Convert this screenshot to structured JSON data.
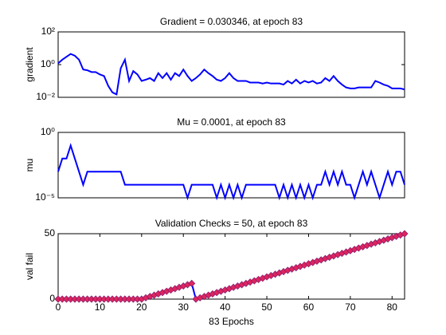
{
  "chart_data": [
    {
      "type": "line",
      "title": "Gradient = 0.030346, at epoch 83",
      "ylabel": "gradient",
      "log_y": true,
      "color": "#0000ff",
      "xlim": [
        0,
        83
      ],
      "ylim": [
        0.01,
        100
      ],
      "yticks": [
        {
          "value": 0.01,
          "label": "10⁻²"
        },
        {
          "value": 1,
          "label": "10⁰"
        },
        {
          "value": 100,
          "label": "10²"
        }
      ],
      "x": [
        0,
        1,
        2,
        3,
        4,
        5,
        6,
        7,
        8,
        9,
        10,
        11,
        12,
        13,
        14,
        15,
        16,
        17,
        18,
        19,
        20,
        21,
        22,
        23,
        24,
        25,
        26,
        27,
        28,
        29,
        30,
        31,
        32,
        33,
        34,
        35,
        36,
        37,
        38,
        39,
        40,
        41,
        42,
        43,
        44,
        45,
        46,
        47,
        48,
        49,
        50,
        51,
        52,
        53,
        54,
        55,
        56,
        57,
        58,
        59,
        60,
        61,
        62,
        63,
        64,
        65,
        66,
        67,
        68,
        69,
        70,
        71,
        72,
        73,
        74,
        75,
        76,
        77,
        78,
        79,
        80,
        81,
        82,
        83
      ],
      "values": [
        1.2,
        2,
        3,
        4.5,
        3.5,
        2,
        0.5,
        0.45,
        0.35,
        0.35,
        0.25,
        0.2,
        0.05,
        0.02,
        0.015,
        0.6,
        2,
        0.1,
        0.4,
        0.25,
        0.1,
        0.12,
        0.15,
        0.1,
        0.3,
        0.15,
        0.3,
        0.12,
        0.3,
        0.2,
        0.5,
        0.2,
        0.1,
        0.15,
        0.25,
        0.5,
        0.3,
        0.2,
        0.12,
        0.1,
        0.15,
        0.3,
        0.15,
        0.1,
        0.1,
        0.1,
        0.08,
        0.08,
        0.08,
        0.07,
        0.08,
        0.07,
        0.07,
        0.07,
        0.06,
        0.1,
        0.07,
        0.12,
        0.07,
        0.1,
        0.08,
        0.1,
        0.07,
        0.08,
        0.15,
        0.1,
        0.2,
        0.1,
        0.06,
        0.04,
        0.035,
        0.035,
        0.04,
        0.04,
        0.04,
        0.04,
        0.1,
        0.08,
        0.06,
        0.05,
        0.035,
        0.035,
        0.035,
        0.030346
      ]
    },
    {
      "type": "line",
      "title": "Mu = 0.0001, at epoch 83",
      "ylabel": "mu",
      "log_y": true,
      "color": "#0000ff",
      "xlim": [
        0,
        83
      ],
      "ylim": [
        1e-05,
        1
      ],
      "yticks": [
        {
          "value": 1e-05,
          "label": "10⁻⁵"
        },
        {
          "value": 1,
          "label": "10⁰"
        }
      ],
      "x": [
        0,
        1,
        2,
        3,
        4,
        5,
        6,
        7,
        8,
        9,
        10,
        11,
        12,
        13,
        14,
        15,
        16,
        17,
        18,
        19,
        20,
        21,
        22,
        23,
        24,
        25,
        26,
        27,
        28,
        29,
        30,
        31,
        32,
        33,
        34,
        35,
        36,
        37,
        38,
        39,
        40,
        41,
        42,
        43,
        44,
        45,
        46,
        47,
        48,
        49,
        50,
        51,
        52,
        53,
        54,
        55,
        56,
        57,
        58,
        59,
        60,
        61,
        62,
        63,
        64,
        65,
        66,
        67,
        68,
        69,
        70,
        71,
        72,
        73,
        74,
        75,
        76,
        77,
        78,
        79,
        80,
        81,
        82,
        83
      ],
      "values": [
        0.001,
        0.01,
        0.01,
        0.1,
        0.01,
        0.001,
        0.0001,
        0.001,
        0.001,
        0.001,
        0.001,
        0.001,
        0.001,
        0.001,
        0.001,
        0.001,
        0.0001,
        0.0001,
        0.0001,
        0.0001,
        0.0001,
        0.0001,
        0.0001,
        0.0001,
        0.0001,
        0.0001,
        0.0001,
        0.0001,
        0.0001,
        0.0001,
        0.0001,
        1e-05,
        0.0001,
        0.0001,
        0.0001,
        0.0001,
        0.0001,
        0.0001,
        1e-05,
        0.0001,
        1e-05,
        0.0001,
        1e-05,
        0.0001,
        1e-05,
        0.0001,
        0.0001,
        0.0001,
        0.0001,
        0.0001,
        0.0001,
        0.0001,
        0.0001,
        1e-05,
        0.0001,
        1e-05,
        0.0001,
        1e-05,
        0.0001,
        1e-05,
        0.0001,
        1e-05,
        0.0001,
        0.0001,
        0.001,
        0.0001,
        0.001,
        0.0001,
        0.001,
        0.0001,
        0.0001,
        1e-05,
        0.0001,
        0.001,
        0.0001,
        0.001,
        0.0001,
        1e-05,
        0.0001,
        0.001,
        0.0001,
        0.001,
        0.001,
        0.0001
      ]
    },
    {
      "type": "line",
      "title": "Validation Checks = 50, at epoch 83",
      "ylabel": "val fail",
      "xlabel": "83 Epochs",
      "color": "#0000ff",
      "marker": "diamond",
      "marker_color": "#e0245e",
      "marker_edge": "#8a1f6e",
      "xlim": [
        0,
        83
      ],
      "ylim": [
        0,
        50
      ],
      "yticks": [
        0,
        50
      ],
      "xticks": [
        0,
        10,
        20,
        30,
        40,
        50,
        60,
        70,
        80
      ],
      "x": [
        0,
        1,
        2,
        3,
        4,
        5,
        6,
        7,
        8,
        9,
        10,
        11,
        12,
        13,
        14,
        15,
        16,
        17,
        18,
        19,
        20,
        21,
        22,
        23,
        24,
        25,
        26,
        27,
        28,
        29,
        30,
        31,
        32,
        33,
        34,
        35,
        36,
        37,
        38,
        39,
        40,
        41,
        42,
        43,
        44,
        45,
        46,
        47,
        48,
        49,
        50,
        51,
        52,
        53,
        54,
        55,
        56,
        57,
        58,
        59,
        60,
        61,
        62,
        63,
        64,
        65,
        66,
        67,
        68,
        69,
        70,
        71,
        72,
        73,
        74,
        75,
        76,
        77,
        78,
        79,
        80,
        81,
        82,
        83
      ],
      "values": [
        0,
        0,
        0,
        0,
        0,
        0,
        0,
        0,
        0,
        0,
        0,
        0,
        0,
        0,
        0,
        0,
        0,
        0,
        0,
        0,
        0,
        1,
        2,
        3,
        4,
        5,
        6,
        7,
        8,
        9,
        10,
        11,
        12,
        0,
        1,
        2,
        3,
        4,
        5,
        6,
        7,
        8,
        9,
        10,
        11,
        12,
        13,
        14,
        15,
        16,
        17,
        18,
        19,
        20,
        21,
        22,
        23,
        24,
        25,
        26,
        27,
        28,
        29,
        30,
        31,
        32,
        33,
        34,
        35,
        36,
        37,
        38,
        39,
        40,
        41,
        42,
        43,
        44,
        45,
        46,
        47,
        48,
        49,
        50
      ]
    }
  ]
}
